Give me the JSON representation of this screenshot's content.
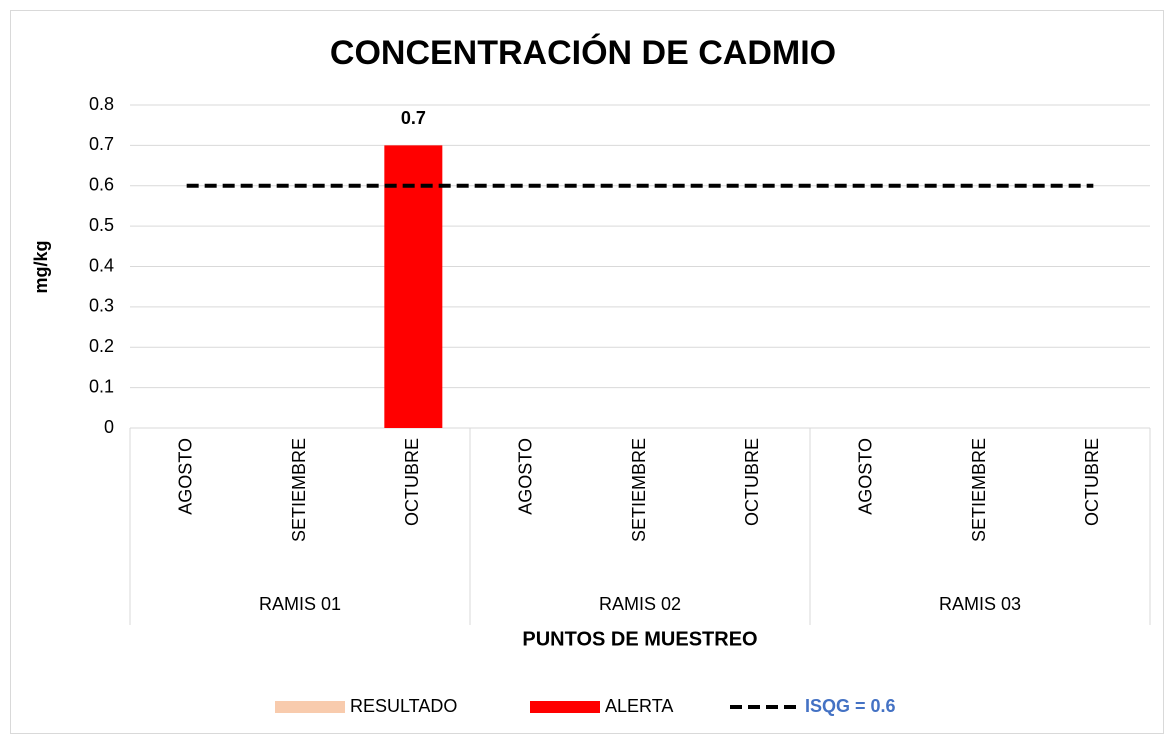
{
  "chart_data": {
    "type": "bar",
    "title": "CONCENTRACIÓN DE CADMIO",
    "ylabel": "mg/kg",
    "xlabel": "PUNTOS DE MUESTREO",
    "groups": [
      {
        "name": "RAMIS 01",
        "categories": [
          "AGOSTO",
          "SETIEMBRE",
          "OCTUBRE"
        ]
      },
      {
        "name": "RAMIS 02",
        "categories": [
          "AGOSTO",
          "SETIEMBRE",
          "OCTUBRE"
        ]
      },
      {
        "name": "RAMIS 03",
        "categories": [
          "AGOSTO",
          "SETIEMBRE",
          "OCTUBRE"
        ]
      }
    ],
    "series": [
      {
        "name": "RESULTADO",
        "type": "bar",
        "color": "#f8cbad",
        "values": [
          null,
          null,
          null,
          null,
          null,
          null,
          null,
          null,
          null
        ]
      },
      {
        "name": "ALERTA",
        "type": "bar",
        "color": "#ff0000",
        "values": [
          null,
          null,
          0.7,
          null,
          null,
          null,
          null,
          null,
          null
        ],
        "data_labels": true
      },
      {
        "name": "ISQG = 0.6",
        "type": "line",
        "color": "#000000",
        "linestyle": "dashed",
        "legend_text_color": "#4472c4",
        "values": [
          0.6,
          0.6,
          0.6,
          0.6,
          0.6,
          0.6,
          0.6,
          0.6,
          0.6
        ]
      }
    ],
    "ylim": [
      0,
      0.8
    ],
    "yticks": [
      0,
      0.1,
      0.2,
      0.3,
      0.4,
      0.5,
      0.6,
      0.7,
      0.8
    ],
    "grid": true,
    "legend": "bottom"
  }
}
